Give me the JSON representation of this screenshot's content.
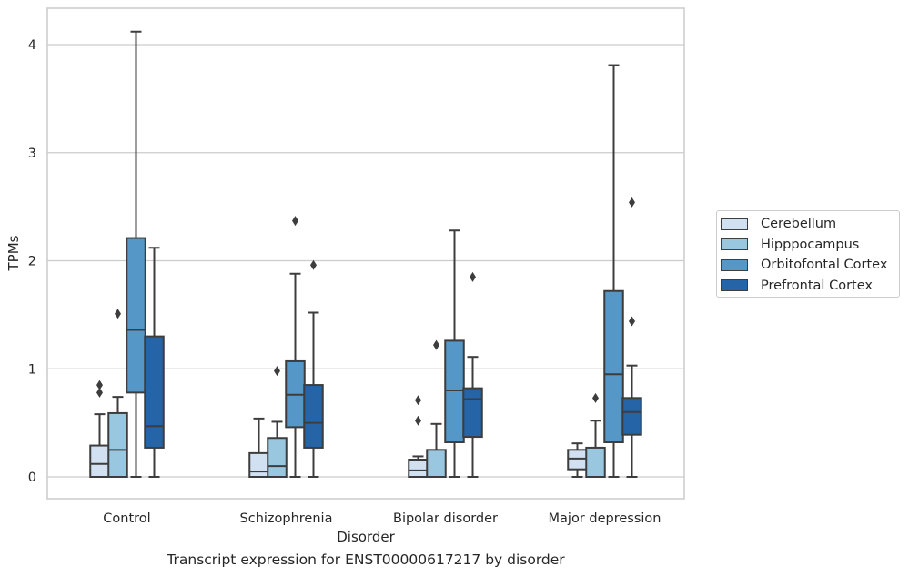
{
  "caption": "Transcript expression for ENST00000617217 by disorder",
  "chart_data": {
    "type": "boxplot",
    "xlabel": "Disorder",
    "ylabel": "TPMs",
    "ylim": [
      -0.2,
      4.33
    ],
    "yticks": [
      0,
      1,
      2,
      3,
      4
    ],
    "grid": "horizontal",
    "legend_position": "right",
    "categories": [
      "Control",
      "Schizophrenia",
      "Bipolar disorder",
      "Major depression"
    ],
    "series": [
      {
        "name": "Cerebellum",
        "color": "#d1e1f2",
        "boxes": [
          {
            "whislo": 0,
            "q1": 0,
            "med": 0.12,
            "q3": 0.29,
            "whishi": 0.58,
            "fliers": [
              0.78,
              0.85
            ]
          },
          {
            "whislo": 0,
            "q1": 0,
            "med": 0.05,
            "q3": 0.22,
            "whishi": 0.54,
            "fliers": []
          },
          {
            "whislo": 0,
            "q1": 0,
            "med": 0.06,
            "q3": 0.16,
            "whishi": 0.19,
            "fliers": [
              0.52,
              0.71
            ]
          },
          {
            "whislo": 0,
            "q1": 0.07,
            "med": 0.17,
            "q3": 0.25,
            "whishi": 0.31,
            "fliers": []
          }
        ]
      },
      {
        "name": "Hipppocampus",
        "color": "#9ac7e0",
        "boxes": [
          {
            "whislo": 0,
            "q1": 0,
            "med": 0.25,
            "q3": 0.59,
            "whishi": 0.74,
            "fliers": [
              1.51
            ]
          },
          {
            "whislo": 0,
            "q1": 0,
            "med": 0.1,
            "q3": 0.36,
            "whishi": 0.51,
            "fliers": [
              0.98
            ]
          },
          {
            "whislo": 0,
            "q1": 0,
            "med": 0,
            "q3": 0.25,
            "whishi": 0.49,
            "fliers": [
              1.22
            ]
          },
          {
            "whislo": 0,
            "q1": 0,
            "med": 0,
            "q3": 0.27,
            "whishi": 0.52,
            "fliers": [
              0.73
            ]
          }
        ]
      },
      {
        "name": "Orbitofontal Cortex",
        "color": "#5597c7",
        "boxes": [
          {
            "whislo": 0,
            "q1": 0.78,
            "med": 1.36,
            "q3": 2.21,
            "whishi": 4.12,
            "fliers": []
          },
          {
            "whislo": 0,
            "q1": 0.46,
            "med": 0.76,
            "q3": 1.07,
            "whishi": 1.88,
            "fliers": [
              2.37
            ]
          },
          {
            "whislo": 0,
            "q1": 0.32,
            "med": 0.8,
            "q3": 1.26,
            "whishi": 2.28,
            "fliers": []
          },
          {
            "whislo": 0,
            "q1": 0.32,
            "med": 0.95,
            "q3": 1.72,
            "whishi": 3.81,
            "fliers": []
          }
        ]
      },
      {
        "name": "Prefrontal Cortex",
        "color": "#2565a7",
        "boxes": [
          {
            "whislo": 0,
            "q1": 0.27,
            "med": 0.47,
            "q3": 1.3,
            "whishi": 2.12,
            "fliers": []
          },
          {
            "whislo": 0,
            "q1": 0.27,
            "med": 0.5,
            "q3": 0.85,
            "whishi": 1.52,
            "fliers": [
              1.96
            ]
          },
          {
            "whislo": 0,
            "q1": 0.37,
            "med": 0.72,
            "q3": 0.82,
            "whishi": 1.11,
            "fliers": [
              1.85
            ]
          },
          {
            "whislo": 0,
            "q1": 0.39,
            "med": 0.6,
            "q3": 0.73,
            "whishi": 1.03,
            "fliers": [
              1.44,
              2.54
            ]
          }
        ]
      }
    ]
  }
}
